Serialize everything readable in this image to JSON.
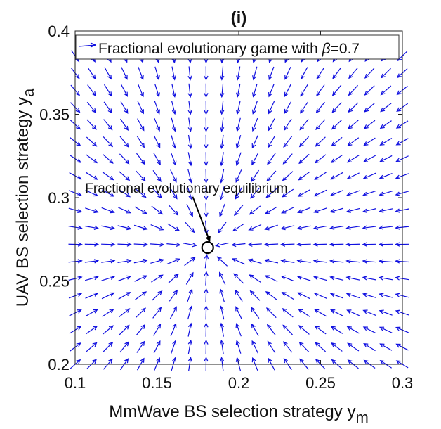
{
  "chart_data": {
    "type": "quiver",
    "title": "(i)",
    "xlabel": "MmWave BS selection strategy y",
    "xlabel_sub": "m",
    "ylabel": "UAV BS selection strategy y",
    "ylabel_sub": "a",
    "xlim": [
      0.1,
      0.3
    ],
    "ylim": [
      0.2,
      0.4
    ],
    "x_ticks": [
      "0.1",
      "0.15",
      "0.2",
      "0.25",
      "0.3"
    ],
    "y_ticks": [
      "0.2",
      "0.25",
      "0.3",
      "0.35",
      "0.4"
    ],
    "legend": {
      "entry_prefix": "Fractional evolutionary game with ",
      "symbol": "β",
      "entry_suffix": "=0.7",
      "placement": "top"
    },
    "equilibrium": {
      "x": 0.181,
      "y": 0.27
    },
    "annotation": {
      "text": "Fractional evolutionary equilibrium",
      "x": 0.168,
      "y": 0.303
    },
    "field": {
      "x_start": 0.1,
      "x_end": 0.3,
      "nx": 21,
      "y_start": 0.2,
      "y_end": 0.385,
      "ny": 19
    },
    "color": "#1010e0",
    "grid": false
  }
}
